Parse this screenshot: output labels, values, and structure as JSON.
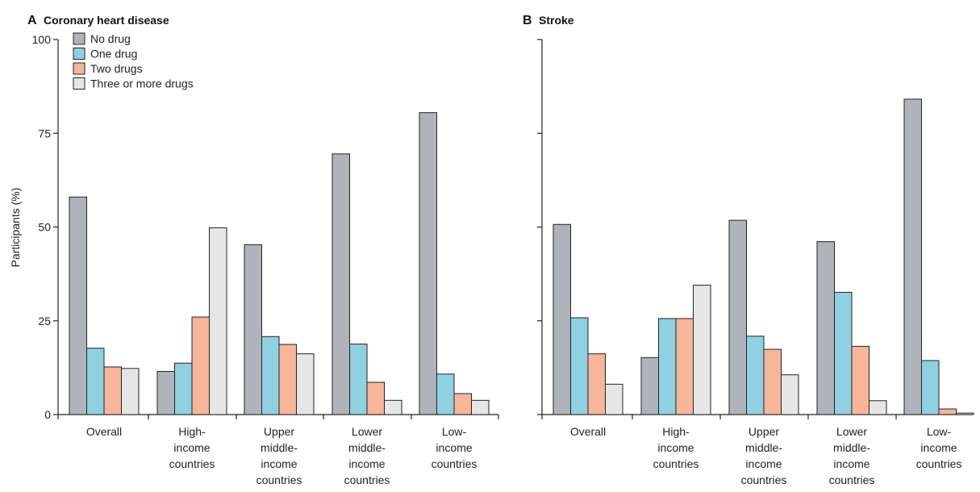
{
  "chart_data": [
    {
      "type": "bar",
      "panel": "A",
      "title": "Coronary heart disease",
      "ylabel": "Participants (%)",
      "ylim": [
        0,
        100
      ],
      "yticks": [
        "0",
        "25",
        "50",
        "75",
        "100"
      ],
      "categories": [
        [
          "Overall"
        ],
        [
          "High-",
          "income",
          "countries"
        ],
        [
          "Upper",
          "middle-",
          "income",
          "countries"
        ],
        [
          "Lower",
          "middle-",
          "income",
          "countries"
        ],
        [
          "Low-",
          "income",
          "countries"
        ]
      ],
      "series": [
        {
          "name": "No drug",
          "color": "#b0b4ba",
          "values": [
            58,
            11.5,
            45.3,
            69.5,
            80.5
          ]
        },
        {
          "name": "One drug",
          "color": "#8fd0e1",
          "values": [
            17.7,
            13.7,
            20.8,
            18.8,
            10.8
          ]
        },
        {
          "name": "Two drugs",
          "color": "#f7b59a",
          "values": [
            12.7,
            26,
            18.7,
            8.6,
            5.6
          ]
        },
        {
          "name": "Three or more drugs",
          "color": "#e6e6e6",
          "values": [
            12.3,
            49.8,
            16.2,
            3.8,
            3.8
          ]
        }
      ],
      "legend": "top-left"
    },
    {
      "type": "bar",
      "panel": "B",
      "title": "Stroke",
      "ylim": [
        0,
        100
      ],
      "categories": [
        [
          "Overall"
        ],
        [
          "High-",
          "income",
          "countries"
        ],
        [
          "Upper",
          "middle-",
          "income",
          "countries"
        ],
        [
          "Lower",
          "middle-",
          "income",
          "countries"
        ],
        [
          "Low-",
          "income",
          "countries"
        ]
      ],
      "series": [
        {
          "name": "No drug",
          "color": "#b0b4ba",
          "values": [
            50.7,
            15.2,
            51.8,
            46.1,
            84.1
          ]
        },
        {
          "name": "One drug",
          "color": "#8fd0e1",
          "values": [
            25.8,
            25.6,
            20.9,
            32.6,
            14.4
          ]
        },
        {
          "name": "Two drugs",
          "color": "#f7b59a",
          "values": [
            16.2,
            25.6,
            17.4,
            18.2,
            1.5
          ]
        },
        {
          "name": "Three or more drugs",
          "color": "#e6e6e6",
          "values": [
            8.1,
            34.5,
            10.6,
            3.7,
            0.4
          ]
        }
      ]
    }
  ]
}
